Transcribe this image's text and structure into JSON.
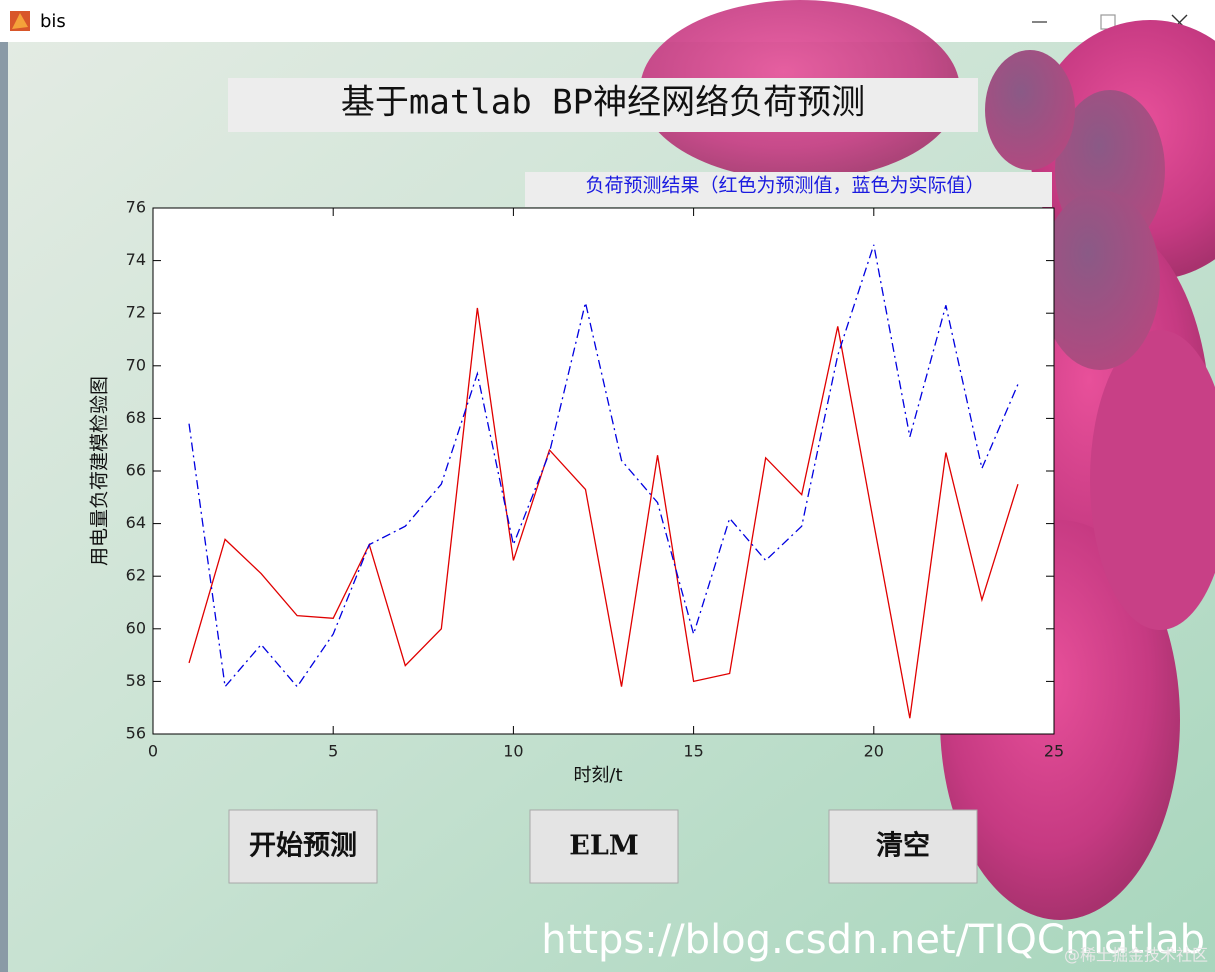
{
  "window": {
    "title": "bis"
  },
  "heading": "基于matlab BP神经网络负荷预测",
  "chart_data": {
    "type": "line",
    "title": "负荷预测结果（红色为预测值，蓝色为实际值）",
    "x_label": "时刻/t",
    "y_label": "用电量负荷建模检验图",
    "x": [
      1,
      2,
      3,
      4,
      5,
      6,
      7,
      8,
      9,
      10,
      11,
      12,
      13,
      14,
      15,
      16,
      17,
      18,
      19,
      20,
      21,
      22,
      23,
      24
    ],
    "series": [
      {
        "color": "#e00000",
        "linestyle": "solid",
        "values": [
          58.7,
          63.4,
          62.1,
          60.5,
          60.4,
          63.2,
          58.6,
          60.0,
          72.2,
          62.6,
          66.8,
          65.3,
          57.8,
          66.6,
          58.0,
          58.3,
          66.5,
          65.1,
          71.5,
          64.0,
          56.6,
          66.7,
          61.1,
          65.5
        ]
      },
      {
        "color": "#0000e0",
        "linestyle": "dashdot",
        "values": [
          67.8,
          57.8,
          59.4,
          57.8,
          59.8,
          63.2,
          63.9,
          65.5,
          69.7,
          63.2,
          66.7,
          72.4,
          66.4,
          64.8,
          59.8,
          64.2,
          62.6,
          63.9,
          70.4,
          74.6,
          67.3,
          72.3,
          66.1,
          69.3
        ]
      }
    ],
    "xlim": [
      0,
      25
    ],
    "ylim": [
      56,
      76
    ],
    "xticks": [
      0,
      5,
      10,
      15,
      20,
      25
    ],
    "yticks": [
      56,
      58,
      60,
      62,
      64,
      66,
      68,
      70,
      72,
      74,
      76
    ],
    "grid": false
  },
  "buttons": [
    "开始预测",
    "ELM",
    "清空"
  ],
  "watermark": {
    "url": "https://blog.csdn.net/TIQCmatlab",
    "credit": "@稀土掘金技术社区"
  }
}
